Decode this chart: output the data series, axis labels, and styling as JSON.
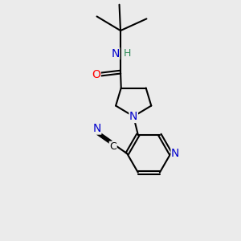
{
  "bg_color": "#ebebeb",
  "bond_color": "#000000",
  "bond_width": 1.5,
  "atom_colors": {
    "N": "#0000cd",
    "O": "#ff0000",
    "C": "#000000",
    "H": "#2e8b57"
  },
  "font_size_atom": 10,
  "font_size_h": 9
}
